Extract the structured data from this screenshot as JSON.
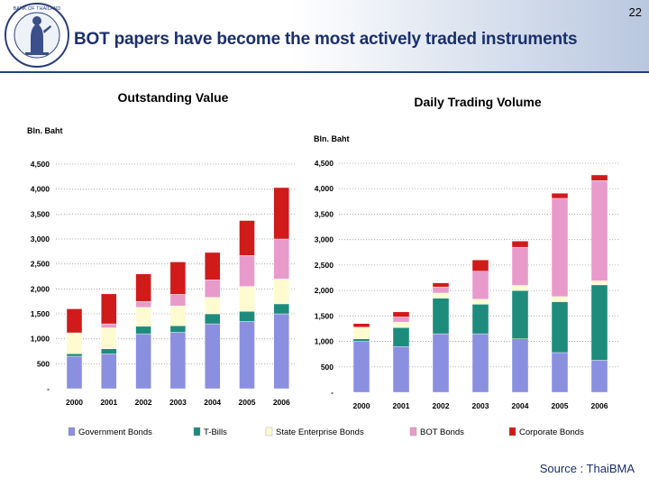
{
  "header": {
    "page_number": "22",
    "title": "BOT papers have become the most actively traded instruments",
    "seal_text": "BANK OF THAILAND"
  },
  "source": "Source : ThaiBMA",
  "colors": {
    "Government Bonds": "#8b8fe0",
    "T-Bills": "#1e8c7c",
    "State Enterprise Bonds": "#fffbd0",
    "BOT Bonds": "#e89bcb",
    "Corporate Bonds": "#d11a1a",
    "header_rule": "#1f3f7f",
    "title_text": "#1b2f6e"
  },
  "chart_data": [
    {
      "type": "bar",
      "stacked": true,
      "title": "Outstanding Value",
      "ylabel": "Bln. Baht",
      "categories": [
        "2000",
        "2001",
        "2002",
        "2003",
        "2004",
        "2005",
        "2006"
      ],
      "yticks": [
        0,
        500,
        1000,
        1500,
        2000,
        2500,
        3000,
        3500,
        4000,
        4500
      ],
      "ytick_labels": [
        "-",
        "500",
        "1,000",
        "1,500",
        "2,000",
        "2,500",
        "3,000",
        "3,500",
        "4,000",
        "4,500"
      ],
      "ylim": [
        0,
        4500
      ],
      "series": [
        {
          "name": "Government Bonds",
          "values": [
            650,
            700,
            1100,
            1130,
            1300,
            1350,
            1500
          ]
        },
        {
          "name": "T-Bills",
          "values": [
            50,
            100,
            150,
            130,
            200,
            200,
            200
          ]
        },
        {
          "name": "State Enterprise Bonds",
          "values": [
            420,
            420,
            380,
            400,
            330,
            500,
            500
          ]
        },
        {
          "name": "BOT Bonds",
          "values": [
            0,
            80,
            120,
            230,
            350,
            620,
            800
          ]
        },
        {
          "name": "Corporate Bonds",
          "values": [
            480,
            600,
            550,
            650,
            550,
            700,
            1030
          ]
        }
      ]
    },
    {
      "type": "bar",
      "stacked": true,
      "title": "Daily Trading Volume",
      "ylabel": "Bln. Baht",
      "categories": [
        "2000",
        "2001",
        "2002",
        "2003",
        "2004",
        "2005",
        "2006"
      ],
      "yticks": [
        0,
        500,
        1000,
        1500,
        2000,
        2500,
        3000,
        3500,
        4000,
        4500
      ],
      "ytick_labels": [
        "-",
        "500",
        "1,000",
        "1,500",
        "2,000",
        "2,500",
        "3,000",
        "3,500",
        "4,000",
        "4,500"
      ],
      "ylim": [
        0,
        4500
      ],
      "series": [
        {
          "name": "Government Bonds",
          "values": [
            1000,
            900,
            1150,
            1150,
            1050,
            780,
            630
          ]
        },
        {
          "name": "T-Bills",
          "values": [
            50,
            370,
            700,
            580,
            950,
            1000,
            1480
          ]
        },
        {
          "name": "State Enterprise Bonds",
          "values": [
            230,
            110,
            100,
            100,
            100,
            100,
            80
          ]
        },
        {
          "name": "BOT Bonds",
          "values": [
            0,
            100,
            120,
            550,
            750,
            1930,
            1970
          ]
        },
        {
          "name": "Corporate Bonds",
          "values": [
            70,
            100,
            80,
            220,
            120,
            100,
            110
          ]
        }
      ]
    }
  ],
  "legend": [
    "Government Bonds",
    "T-Bills",
    "State Enterprise Bonds",
    "BOT Bonds",
    "Corporate Bonds"
  ]
}
